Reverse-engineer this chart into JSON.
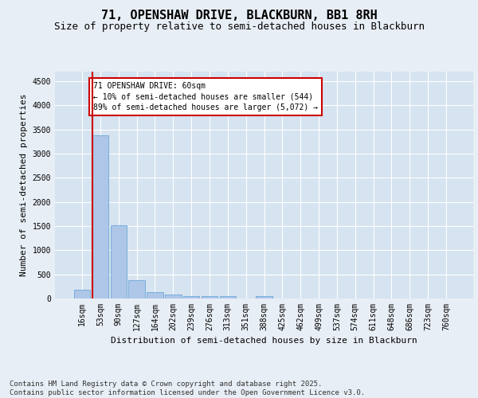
{
  "title_line1": "71, OPENSHAW DRIVE, BLACKBURN, BB1 8RH",
  "title_line2": "Size of property relative to semi-detached houses in Blackburn",
  "xlabel": "Distribution of semi-detached houses by size in Blackburn",
  "ylabel": "Number of semi-detached properties",
  "categories": [
    "16sqm",
    "53sqm",
    "90sqm",
    "127sqm",
    "164sqm",
    "202sqm",
    "239sqm",
    "276sqm",
    "313sqm",
    "351sqm",
    "388sqm",
    "425sqm",
    "462sqm",
    "499sqm",
    "537sqm",
    "574sqm",
    "611sqm",
    "648sqm",
    "686sqm",
    "723sqm",
    "760sqm"
  ],
  "bar_values": [
    185,
    3380,
    1510,
    380,
    135,
    80,
    50,
    45,
    50,
    0,
    45,
    0,
    0,
    0,
    0,
    0,
    0,
    0,
    0,
    0,
    0
  ],
  "bar_color": "#aec6e8",
  "bar_edge_color": "#5a9fd4",
  "annotation_text": "71 OPENSHAW DRIVE: 60sqm\n← 10% of semi-detached houses are smaller (544)\n89% of semi-detached houses are larger (5,072) →",
  "annotation_box_color": "#ffffff",
  "annotation_box_edge_color": "#cc0000",
  "property_line_color": "#cc0000",
  "ylim": [
    0,
    4700
  ],
  "yticks": [
    0,
    500,
    1000,
    1500,
    2000,
    2500,
    3000,
    3500,
    4000,
    4500
  ],
  "bg_color": "#e8eef5",
  "plot_bg_color": "#d6e3f0",
  "footer_text": "Contains HM Land Registry data © Crown copyright and database right 2025.\nContains public sector information licensed under the Open Government Licence v3.0.",
  "title_fontsize": 11,
  "subtitle_fontsize": 9,
  "axis_label_fontsize": 8,
  "tick_fontsize": 7,
  "footer_fontsize": 6.5
}
